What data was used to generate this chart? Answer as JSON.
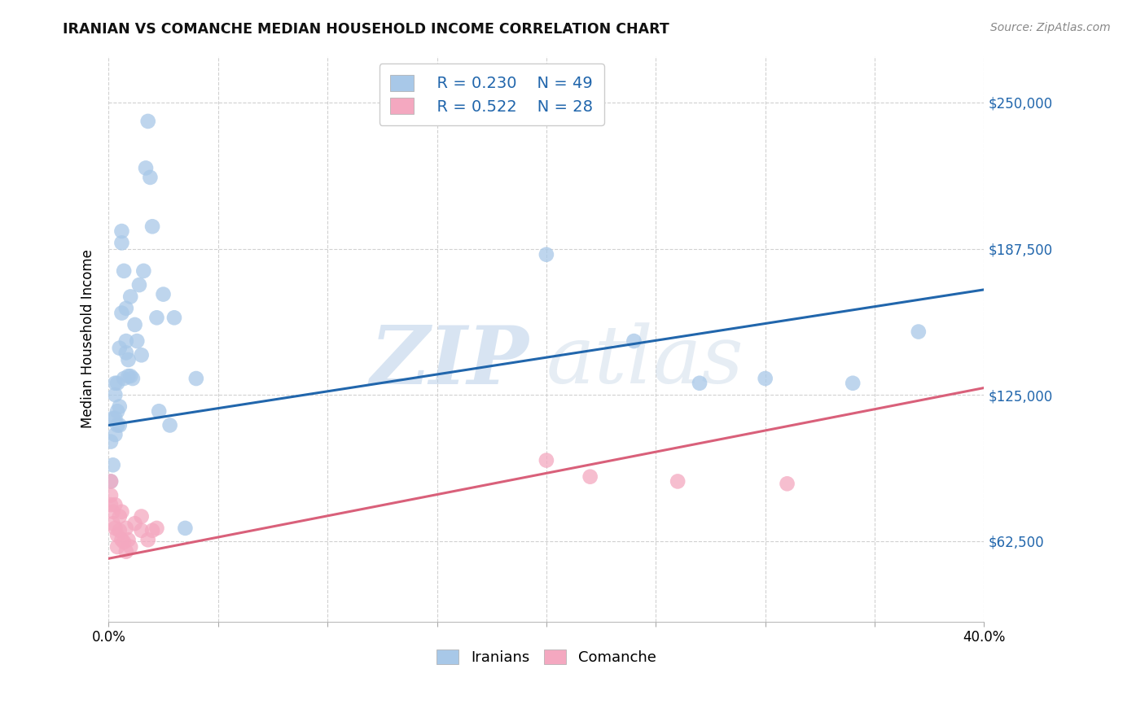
{
  "title": "IRANIAN VS COMANCHE MEDIAN HOUSEHOLD INCOME CORRELATION CHART",
  "source": "Source: ZipAtlas.com",
  "ylabel": "Median Household Income",
  "yticks": [
    62500,
    125000,
    187500,
    250000
  ],
  "ytick_labels": [
    "$62,500",
    "$125,000",
    "$187,500",
    "$250,000"
  ],
  "xlim": [
    0.0,
    0.4
  ],
  "ylim": [
    28000,
    270000
  ],
  "watermark_zip": "ZIP",
  "watermark_atlas": "atlas",
  "legend_R1": "R = 0.230",
  "legend_N1": "N = 49",
  "legend_R2": "R = 0.522",
  "legend_N2": "N = 28",
  "color_iranian": "#a8c8e8",
  "color_comanche": "#f4a8c0",
  "color_line_iranian": "#2166ac",
  "color_line_comanche": "#d9607a",
  "iranians_x": [
    0.001,
    0.001,
    0.002,
    0.002,
    0.003,
    0.003,
    0.003,
    0.003,
    0.004,
    0.004,
    0.004,
    0.005,
    0.005,
    0.005,
    0.006,
    0.006,
    0.006,
    0.007,
    0.007,
    0.008,
    0.008,
    0.008,
    0.009,
    0.009,
    0.01,
    0.01,
    0.011,
    0.012,
    0.013,
    0.014,
    0.015,
    0.016,
    0.017,
    0.018,
    0.019,
    0.02,
    0.022,
    0.023,
    0.025,
    0.028,
    0.03,
    0.035,
    0.04,
    0.2,
    0.24,
    0.27,
    0.3,
    0.34,
    0.37
  ],
  "iranians_y": [
    105000,
    88000,
    115000,
    95000,
    130000,
    115000,
    108000,
    125000,
    130000,
    112000,
    118000,
    145000,
    120000,
    112000,
    195000,
    190000,
    160000,
    178000,
    132000,
    143000,
    162000,
    148000,
    140000,
    133000,
    167000,
    133000,
    132000,
    155000,
    148000,
    172000,
    142000,
    178000,
    222000,
    242000,
    218000,
    197000,
    158000,
    118000,
    168000,
    112000,
    158000,
    68000,
    132000,
    185000,
    148000,
    130000,
    132000,
    130000,
    152000
  ],
  "comanche_x": [
    0.001,
    0.001,
    0.001,
    0.002,
    0.002,
    0.003,
    0.003,
    0.004,
    0.004,
    0.005,
    0.005,
    0.006,
    0.006,
    0.007,
    0.008,
    0.008,
    0.009,
    0.01,
    0.012,
    0.015,
    0.015,
    0.018,
    0.02,
    0.022,
    0.2,
    0.22,
    0.26,
    0.31
  ],
  "comanche_y": [
    88000,
    82000,
    78000,
    75000,
    70000,
    78000,
    68000,
    65000,
    60000,
    73000,
    67000,
    75000,
    63000,
    62000,
    68000,
    58000,
    63000,
    60000,
    70000,
    73000,
    67000,
    63000,
    67000,
    68000,
    97000,
    90000,
    88000,
    87000
  ],
  "iranian_trend_x": [
    0.0,
    0.4
  ],
  "iranian_trend_y": [
    112000,
    170000
  ],
  "comanche_trend_x": [
    0.0,
    0.4
  ],
  "comanche_trend_y": [
    55000,
    128000
  ],
  "background_color": "#ffffff",
  "grid_color": "#cccccc"
}
